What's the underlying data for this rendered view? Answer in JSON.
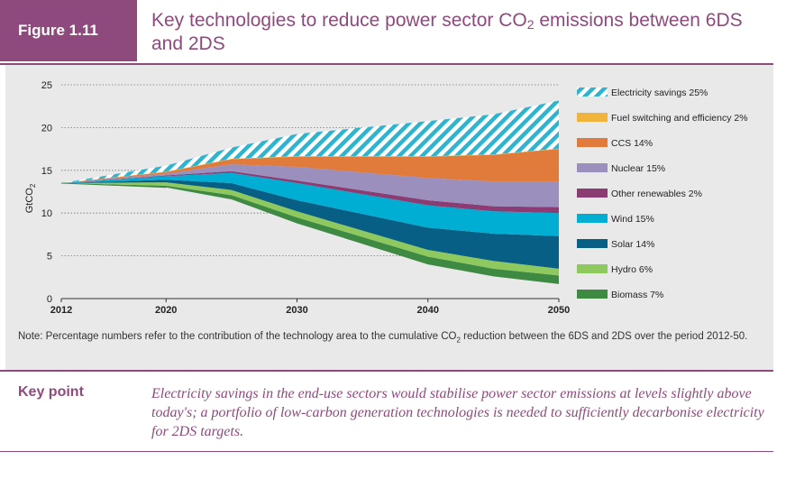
{
  "header": {
    "figure_label": "Figure 1.11",
    "title_pre": "Key technologies to reduce power sector CO",
    "title_sub": "2",
    "title_post": " emissions between 6DS and 2DS"
  },
  "note": {
    "pre": "Note: Percentage numbers refer to the contribution of the technology area to the cumulative CO",
    "sub": "2",
    "post": " reduction between the 6DS and 2DS over the period 2012-50."
  },
  "key_point": {
    "label": "Key point",
    "text": "Electricity savings in the end-use sectors would stabilise power sector emissions at levels slightly above today's; a portfolio of low-carbon generation technologies is needed to sufficiently decarbonise electricity for 2DS targets."
  },
  "chart_data": {
    "type": "area",
    "stacked": true,
    "ylabel_main": "GtCO",
    "ylabel_sub": "2",
    "x": [
      2012,
      2020,
      2025,
      2030,
      2040,
      2045,
      2050
    ],
    "x_ticks": [
      2012,
      2020,
      2030,
      2040,
      2050
    ],
    "y_ticks": [
      0,
      5,
      10,
      15,
      20,
      25
    ],
    "ylim": [
      0,
      25
    ],
    "xlim": [
      2012,
      2050
    ],
    "grid": "dotted horizontal",
    "legend_position": "right",
    "series": [
      {
        "name": "Biomass 7%",
        "color": "#3f8a43",
        "pattern": "solid",
        "values": [
          0,
          0.2,
          0.5,
          0.7,
          0.9,
          0.9,
          1.0
        ]
      },
      {
        "name": "Hydro 6%",
        "color": "#8ec95f",
        "pattern": "solid",
        "values": [
          0,
          0.4,
          0.6,
          0.7,
          0.8,
          0.9,
          0.8
        ]
      },
      {
        "name": "Solar 14%",
        "color": "#075f86",
        "pattern": "solid",
        "values": [
          0,
          0.3,
          0.8,
          1.3,
          2.6,
          3.2,
          3.8
        ]
      },
      {
        "name": "Wind 15%",
        "color": "#00aed4",
        "pattern": "solid",
        "values": [
          0,
          0.4,
          1.2,
          2.0,
          2.6,
          2.6,
          2.7
        ]
      },
      {
        "name": "Other renewables 2%",
        "color": "#8a3c73",
        "pattern": "solid",
        "values": [
          0,
          0.1,
          0.2,
          0.3,
          0.6,
          0.6,
          0.7
        ]
      },
      {
        "name": "Nuclear 15%",
        "color": "#9b8fbe",
        "pattern": "solid",
        "values": [
          0,
          0.2,
          0.8,
          1.6,
          2.6,
          2.9,
          3.0
        ]
      },
      {
        "name": "CCS 14%",
        "color": "#e07b3c",
        "pattern": "solid",
        "values": [
          0,
          0.2,
          0.6,
          1.2,
          2.5,
          3.1,
          3.8
        ]
      },
      {
        "name": "Fuel switching and efficiency 2%",
        "color": "#f0b43c",
        "pattern": "solid",
        "values": [
          0,
          0.05,
          0.05,
          0.05,
          0.05,
          0.05,
          0.05
        ]
      },
      {
        "name": "Electricity savings 25%",
        "color": "#2fb4cf",
        "pattern": "hatch",
        "values": [
          0,
          0.7,
          1.3,
          2.6,
          4.1,
          4.7,
          5.6
        ]
      }
    ],
    "baseline_2DS": [
      13.5,
      13.0,
      11.6,
      8.8,
      4.0,
      2.6,
      1.7
    ]
  }
}
